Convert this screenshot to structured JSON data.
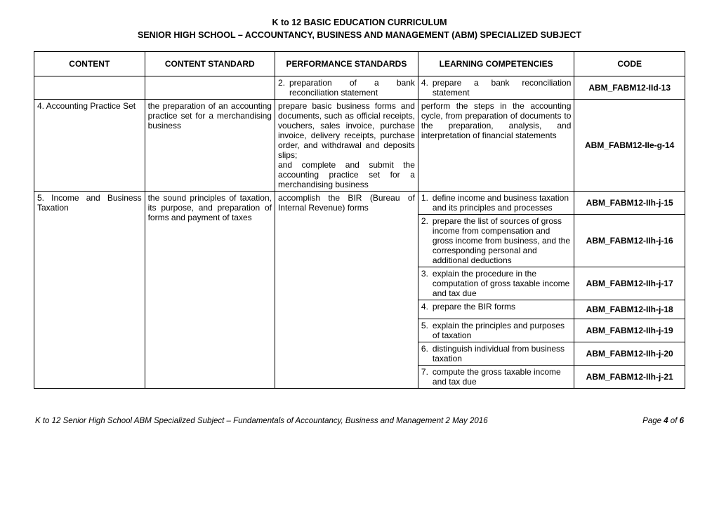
{
  "header": {
    "line1": "K to 12 BASIC EDUCATION CURRICULUM",
    "line2": "SENIOR HIGH SCHOOL – ACCOUNTANCY, BUSINESS AND MANAGEMENT (ABM) SPECIALIZED SUBJECT"
  },
  "columns": {
    "content": "CONTENT",
    "standard": "CONTENT STANDARD",
    "performance": "PERFORMANCE STANDARDS",
    "learning": "LEARNING COMPETENCIES",
    "code": "CODE"
  },
  "rows": {
    "r1": {
      "content": "",
      "standard": "",
      "perf_n": "2.",
      "perf_t": "preparation of a bank reconciliation statement",
      "learn_n": "4.",
      "learn_t": "prepare a bank reconciliation statement",
      "code": "ABM_FABM12-IId-13"
    },
    "r2": {
      "content": "4. Accounting Practice Set",
      "standard": "the preparation of an accounting practice set for a merchandising business",
      "perf": "prepare basic business forms and documents, such as official receipts, vouchers, sales invoice, purchase invoice, delivery receipts, purchase order, and withdrawal and deposits slips;\nand complete and submit the accounting practice set for a merchandising business",
      "learn": "perform the steps in the accounting cycle, from preparation of documents to the preparation, analysis, and interpretation of financial statements",
      "code": "ABM_FABM12-IIe-g-14"
    },
    "r3": {
      "content": "5. Income and Business Taxation",
      "standard": "the sound principles of taxation, its purpose, and preparation of forms and payment of taxes",
      "perf": "accomplish the BIR (Bureau of Internal Revenue) forms",
      "items": {
        "i1": {
          "n": "1.",
          "t": "define income and business taxation and its principles and processes",
          "code": "ABM_FABM12-IIh-j-15"
        },
        "i2": {
          "n": "2.",
          "t": "prepare the list of sources of gross income from compensation and gross income from business, and the corresponding personal and additional deductions",
          "code": "ABM_FABM12-IIh-j-16"
        },
        "i3": {
          "n": "3.",
          "t": "explain the procedure in the computation of gross taxable income and tax due",
          "code": "ABM_FABM12-IIh-j-17"
        },
        "i4": {
          "n": "4.",
          "t": "prepare the BIR forms",
          "code": "ABM_FABM12-IIh-j-18"
        },
        "i5": {
          "n": "5.",
          "t": "explain the principles and purposes of taxation",
          "code": "ABM_FABM12-IIh-j-19"
        },
        "i6": {
          "n": "6.",
          "t": "distinguish individual from business taxation",
          "code": "ABM_FABM12-IIh-j-20"
        },
        "i7": {
          "n": "7.",
          "t": "compute the gross taxable income and tax due",
          "code": "ABM_FABM12-IIh-j-21"
        }
      }
    }
  },
  "footer": {
    "left": "K to 12 Senior High School ABM Specialized Subject – Fundamentals of Accountancy, Business and Management 2     May 2016",
    "right": "Page 4 of 6"
  }
}
